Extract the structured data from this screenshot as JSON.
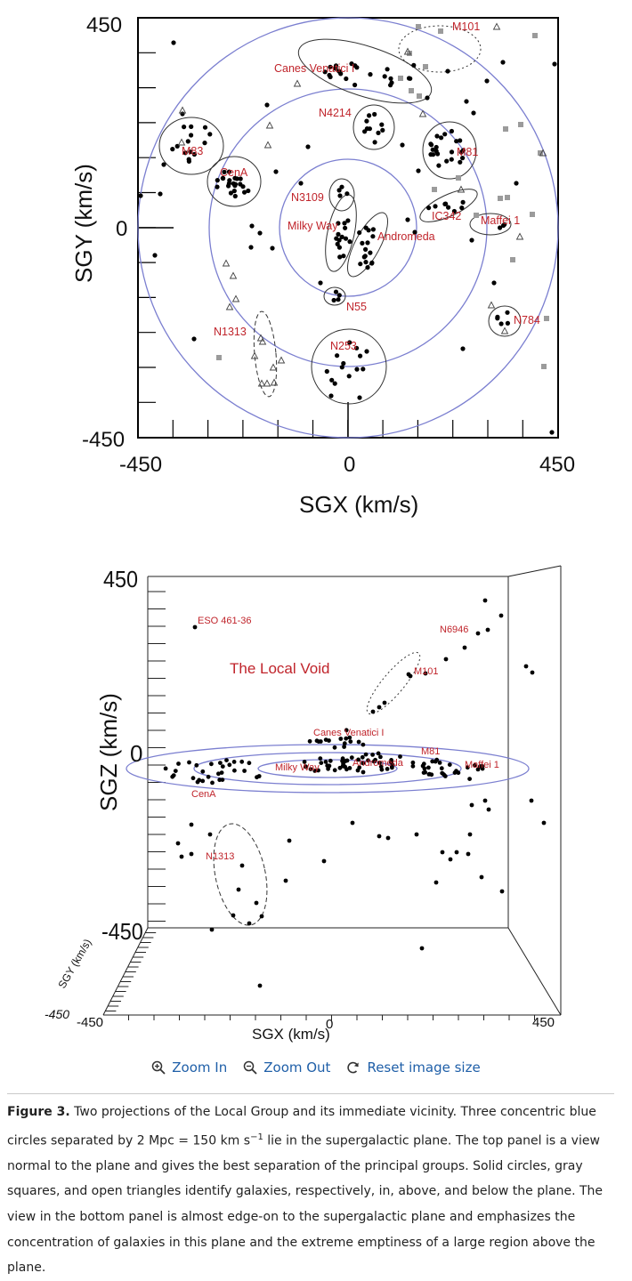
{
  "top_panel": {
    "x_axis_label": "SGX (km/s)",
    "y_axis_label": "SGY (km/s)",
    "x_ticks": [
      "-450",
      "0",
      "450"
    ],
    "y_ticks": [
      "450",
      "0",
      "-450"
    ],
    "group_labels": [
      "M101",
      "Canes Venatici I",
      "N4214",
      "M83",
      "M81",
      "CenA",
      "N3109",
      "IC342",
      "Maffei 1",
      "Milky Way",
      "Andromeda",
      "N55",
      "N784",
      "N1313",
      "N253"
    ]
  },
  "bottom_panel": {
    "x_axis_label": "SGX (km/s)",
    "y_axis_label": "SGZ (km/s)",
    "depth_axis_label": "SGY (km/s)",
    "z_ticks": [
      "450",
      "0",
      "-450"
    ],
    "x_ticks": [
      "-450",
      "0",
      "450"
    ],
    "depth_tick": "-450",
    "void_label": "The Local Void",
    "labels": [
      "ESO 461-36",
      "N6946",
      "M101",
      "Canes Venatici I",
      "M81",
      "Milky Way",
      "Andromeda",
      "Maffei 1",
      "CenA",
      "N1313"
    ]
  },
  "toolbar": {
    "zoom_in": "Zoom In",
    "zoom_out": "Zoom Out",
    "reset": "Reset image size"
  },
  "caption": {
    "label": "Figure 3.",
    "text_before_superscript": " Two projections of the Local Group and its immediate vicinity. Three concentric blue circles separated by 2 Mpc = 150 km s",
    "superscript": "−1",
    "text_after_superscript": " lie in the supergalactic plane. The top panel is a view normal to the plane and gives the best separation of the principal groups. Solid circles, gray squares, and open triangles identify galaxies, respectively, in, above, and below the plane. The view in the bottom panel is almost edge-on to the supergalactic plane and emphasizes the concentration of galaxies in this plane and the extreme emptiness of a large region above the plane."
  },
  "colors": {
    "label_red": "#c0242b",
    "circle_blue": "#7b7fd0",
    "link_blue": "#1f5fa8"
  }
}
